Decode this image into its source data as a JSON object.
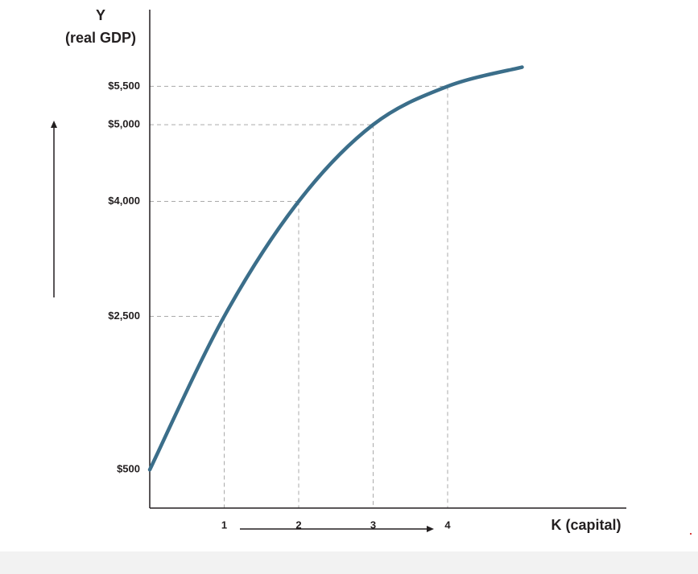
{
  "chart_data": {
    "type": "line",
    "y_label": "Y",
    "y_label_note": "(real GDP)",
    "x_label": "K (capital)",
    "x": [
      0,
      1,
      2,
      3,
      4,
      5
    ],
    "series": [
      {
        "color": "#3b6e8a",
        "values": [
          500,
          2500,
          4000,
          5000,
          5500,
          5750
        ]
      }
    ],
    "xlim": [
      0,
      6.4
    ],
    "xticks": [
      1,
      2,
      3,
      4
    ],
    "ylim": [
      0,
      6500
    ],
    "yticks": [
      {
        "value": 500,
        "label": "$500"
      },
      {
        "value": 2500,
        "label": "$2,500"
      },
      {
        "value": 4000,
        "label": "$4,000"
      },
      {
        "value": 5000,
        "label": "$5,000"
      },
      {
        "value": 5500,
        "label": "$5,500"
      }
    ],
    "guides": true
  }
}
